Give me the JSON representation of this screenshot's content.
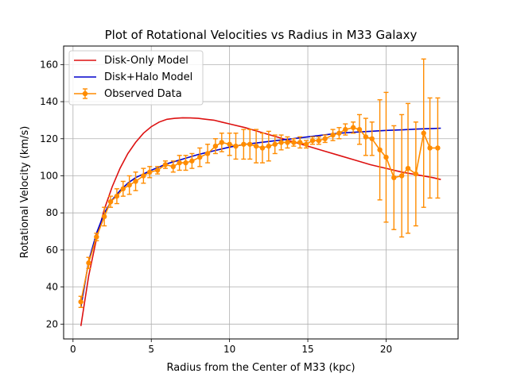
{
  "chart_data": {
    "type": "line",
    "title": "Plot of Rotational Velocities vs Radius in M33 Galaxy",
    "xlabel": "Radius from the Center of M33 (kpc)",
    "ylabel": "Rotational Velocity (km/s)",
    "xlim": [
      -0.6,
      24.6
    ],
    "ylim": [
      12,
      170
    ],
    "xticks": [
      0,
      5,
      10,
      15,
      20
    ],
    "yticks": [
      20,
      40,
      60,
      80,
      100,
      120,
      140,
      160
    ],
    "grid": true,
    "legend_position": "top-left",
    "series": [
      {
        "name": "Disk-Only Model",
        "kind": "line",
        "color": "#dd1111",
        "x": [
          0.5,
          1.0,
          1.5,
          2.0,
          2.5,
          3.0,
          3.5,
          4.0,
          4.5,
          5.0,
          5.5,
          6.0,
          6.5,
          7.0,
          7.5,
          8.0,
          8.5,
          9.0,
          9.5,
          10.0,
          11.0,
          12.0,
          13.0,
          14.0,
          15.0,
          16.0,
          17.0,
          18.0,
          19.0,
          20.0,
          21.0,
          22.0,
          23.0,
          23.5
        ],
        "y": [
          19,
          46,
          66,
          82,
          94,
          104,
          112,
          118,
          123,
          126.5,
          129,
          130.5,
          131,
          131.3,
          131.2,
          131,
          130.5,
          130,
          129,
          128,
          126,
          123.5,
          121,
          118.5,
          116,
          113.5,
          111,
          108.5,
          106,
          104,
          102,
          100.5,
          99,
          98
        ]
      },
      {
        "name": "Disk+Halo Model",
        "kind": "line",
        "color": "#0000cc",
        "x": [
          0.5,
          1.0,
          1.5,
          2.0,
          2.5,
          3.0,
          3.5,
          4.0,
          5.0,
          6.0,
          7.0,
          8.0,
          9.0,
          10.0,
          11.0,
          12.0,
          13.0,
          14.0,
          15.0,
          16.0,
          17.0,
          18.0,
          19.0,
          20.0,
          21.0,
          22.0,
          23.0,
          23.5
        ],
        "y": [
          29,
          54,
          69,
          80,
          87,
          92,
          96,
          99,
          103,
          106.5,
          109,
          111.5,
          113.5,
          115.5,
          117,
          118,
          119,
          120,
          121,
          122,
          123,
          123.5,
          124,
          124.5,
          124.8,
          125.2,
          125.5,
          125.7
        ]
      },
      {
        "name": "Observed Data",
        "kind": "errorbar",
        "color": "#ff8c00",
        "x": [
          0.5,
          1.0,
          1.5,
          2.0,
          2.4,
          2.8,
          3.2,
          3.6,
          4.0,
          4.5,
          4.9,
          5.4,
          5.9,
          6.4,
          6.8,
          7.2,
          7.6,
          8.1,
          8.6,
          9.1,
          9.5,
          10.0,
          10.4,
          10.9,
          11.3,
          11.7,
          12.1,
          12.5,
          12.9,
          13.3,
          13.7,
          14.1,
          14.5,
          14.9,
          15.3,
          15.7,
          16.1,
          16.6,
          17.0,
          17.4,
          17.9,
          18.3,
          18.7,
          19.1,
          19.6,
          20.0,
          20.5,
          21.0,
          21.4,
          21.9,
          22.4,
          22.8,
          23.3
        ]
      }
    ],
    "observed": {
      "y": [
        32,
        53,
        67,
        78,
        86,
        89,
        93,
        95,
        97,
        100,
        102,
        103,
        106,
        105,
        107,
        107,
        108,
        110,
        112,
        116,
        118,
        117,
        116,
        117,
        117,
        116,
        115,
        116,
        117,
        118,
        118,
        118,
        118,
        117,
        119,
        119,
        120,
        122,
        123,
        125,
        126,
        125,
        121,
        120,
        114,
        110,
        99,
        100,
        104,
        101,
        123,
        115,
        115
      ],
      "err": [
        3,
        3,
        2,
        5,
        3,
        4,
        4,
        5,
        5,
        4,
        3,
        2,
        2,
        3,
        4,
        4,
        4,
        5,
        5,
        4,
        5,
        6,
        7,
        8,
        8,
        9,
        8,
        8,
        5,
        4,
        3,
        2,
        3,
        2,
        2,
        2,
        2,
        3,
        3,
        3,
        3,
        8,
        10,
        9,
        27,
        35,
        28,
        33,
        35,
        28,
        40,
        27,
        27
      ]
    }
  }
}
